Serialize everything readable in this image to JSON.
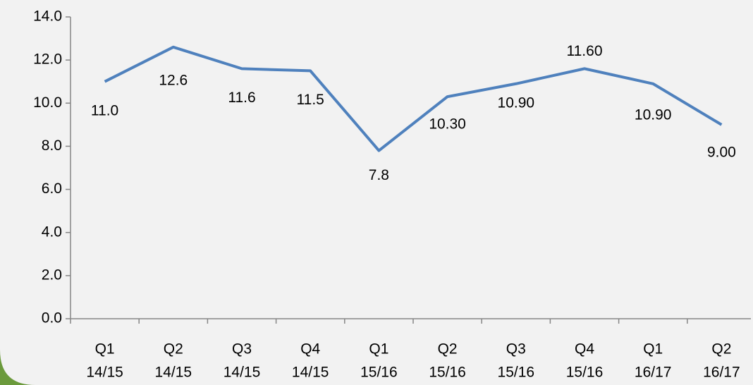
{
  "chart_data": {
    "type": "line",
    "categories": [
      [
        "Q1",
        "14/15"
      ],
      [
        "Q2",
        "14/15"
      ],
      [
        "Q3",
        "14/15"
      ],
      [
        "Q4",
        "14/15"
      ],
      [
        "Q1",
        "15/16"
      ],
      [
        "Q2",
        "15/16"
      ],
      [
        "Q3",
        "15/16"
      ],
      [
        "Q4",
        "15/16"
      ],
      [
        "Q1",
        "16/17"
      ],
      [
        "Q2",
        "16/17"
      ]
    ],
    "series": [
      {
        "name": "Value",
        "color": "#4f81bd",
        "values": [
          11.0,
          12.6,
          11.6,
          11.5,
          7.8,
          10.3,
          10.9,
          11.6,
          10.9,
          9.0
        ],
        "value_labels": [
          "11.0",
          "12.6",
          "11.6",
          "11.5",
          "7.8",
          "10.30",
          "10.90",
          "11.60",
          "10.90",
          "9.00"
        ]
      }
    ],
    "ylim": [
      0,
      14
    ],
    "yticks": [
      {
        "value": 0,
        "label": "0.0"
      },
      {
        "value": 2,
        "label": "2.0"
      },
      {
        "value": 4,
        "label": "4.0"
      },
      {
        "value": 6,
        "label": "6.0"
      },
      {
        "value": 8,
        "label": "8.0"
      },
      {
        "value": 10,
        "label": "10.0"
      },
      {
        "value": 12,
        "label": "12.0"
      },
      {
        "value": 14,
        "label": "14.0"
      }
    ],
    "grid": false,
    "legend": false
  }
}
